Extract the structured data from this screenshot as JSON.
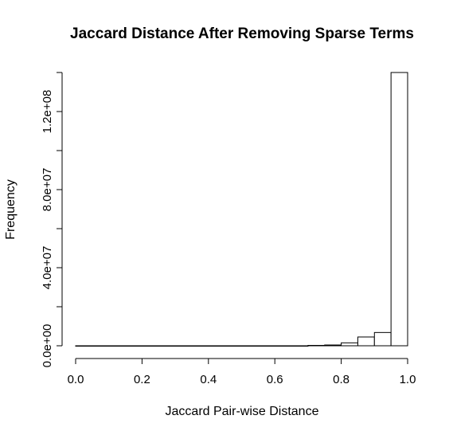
{
  "chart_data": {
    "type": "bar",
    "title": "Jaccard Distance After Removing Sparse Terms",
    "xlabel": "Jaccard Pair-wise Distance",
    "ylabel": "Frequency",
    "bin_edges": [
      0.0,
      0.05,
      0.1,
      0.15,
      0.2,
      0.25,
      0.3,
      0.35,
      0.4,
      0.45,
      0.5,
      0.55,
      0.6,
      0.65,
      0.7,
      0.75,
      0.8,
      0.85,
      0.9,
      0.95,
      1.0
    ],
    "values": [
      0,
      0,
      0,
      0,
      0,
      0,
      0,
      0,
      0,
      0,
      0,
      0,
      0,
      0,
      200000,
      400000,
      1500000,
      4500000,
      6800000,
      140000000
    ],
    "xlim": [
      0.0,
      1.0
    ],
    "ylim": [
      0,
      140000000
    ],
    "x_ticks": [
      0.0,
      0.2,
      0.4,
      0.6,
      0.8,
      1.0
    ],
    "x_tick_labels": [
      "0.0",
      "0.2",
      "0.4",
      "0.6",
      "0.8",
      "1.0"
    ],
    "y_ticks": [
      0,
      20000000,
      40000000,
      60000000,
      80000000,
      100000000,
      120000000,
      140000000
    ],
    "y_tick_labels": [
      "0.0e+00",
      "",
      "4.0e+07",
      "",
      "8.0e+07",
      "",
      "1.2e+08",
      ""
    ],
    "grid": false,
    "legend": "none",
    "bar_fill": "#ffffff",
    "bar_stroke": "#000000"
  }
}
